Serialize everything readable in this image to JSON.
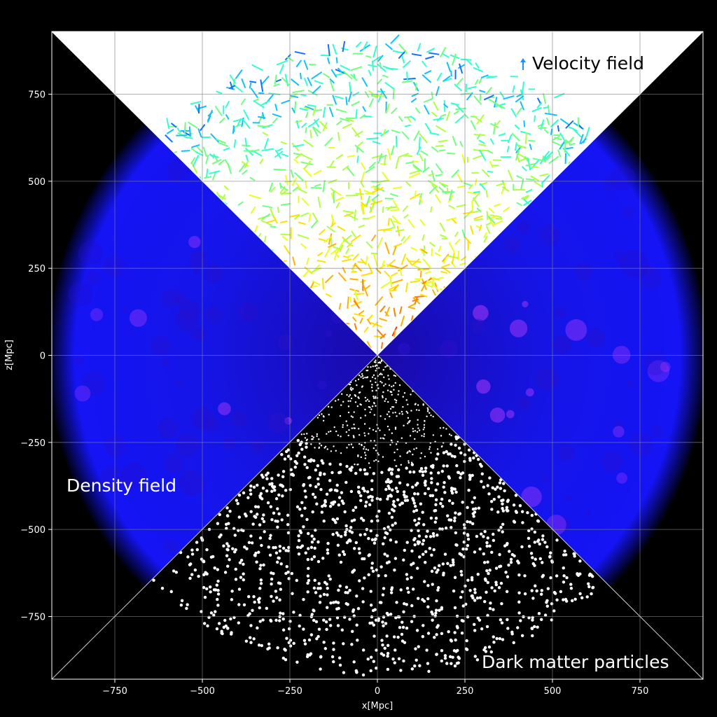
{
  "chart_data": {
    "type": "scatter",
    "title": "",
    "xlabel": "x[Mpc]",
    "ylabel": "z[Mpc]",
    "xlim": [
      -930,
      930
    ],
    "ylim": [
      -930,
      930
    ],
    "xticks": [
      -750,
      -500,
      -250,
      0,
      250,
      500,
      750
    ],
    "yticks": [
      -750,
      -500,
      -250,
      0,
      250,
      500,
      750
    ],
    "xtick_labels": [
      "−750",
      "−500",
      "−250",
      "0",
      "250",
      "500",
      "750"
    ],
    "ytick_labels": [
      "−750",
      "−500",
      "−250",
      "0",
      "250",
      "500",
      "750"
    ],
    "grid": true,
    "survey_radius": 920,
    "colors": {
      "background": "#000000",
      "velocity_panel": "#ffffff",
      "density_base": "#1010f0",
      "density_peak": "#c040ff",
      "particles": "#ffffff",
      "grid": "#808080"
    },
    "panels": [
      {
        "label": "Velocity field",
        "region": "top",
        "legend_icon": "arrow-icon"
      },
      {
        "label": "Density field",
        "region": "left-and-right"
      },
      {
        "label": "Dark matter particles",
        "region": "bottom"
      }
    ]
  }
}
